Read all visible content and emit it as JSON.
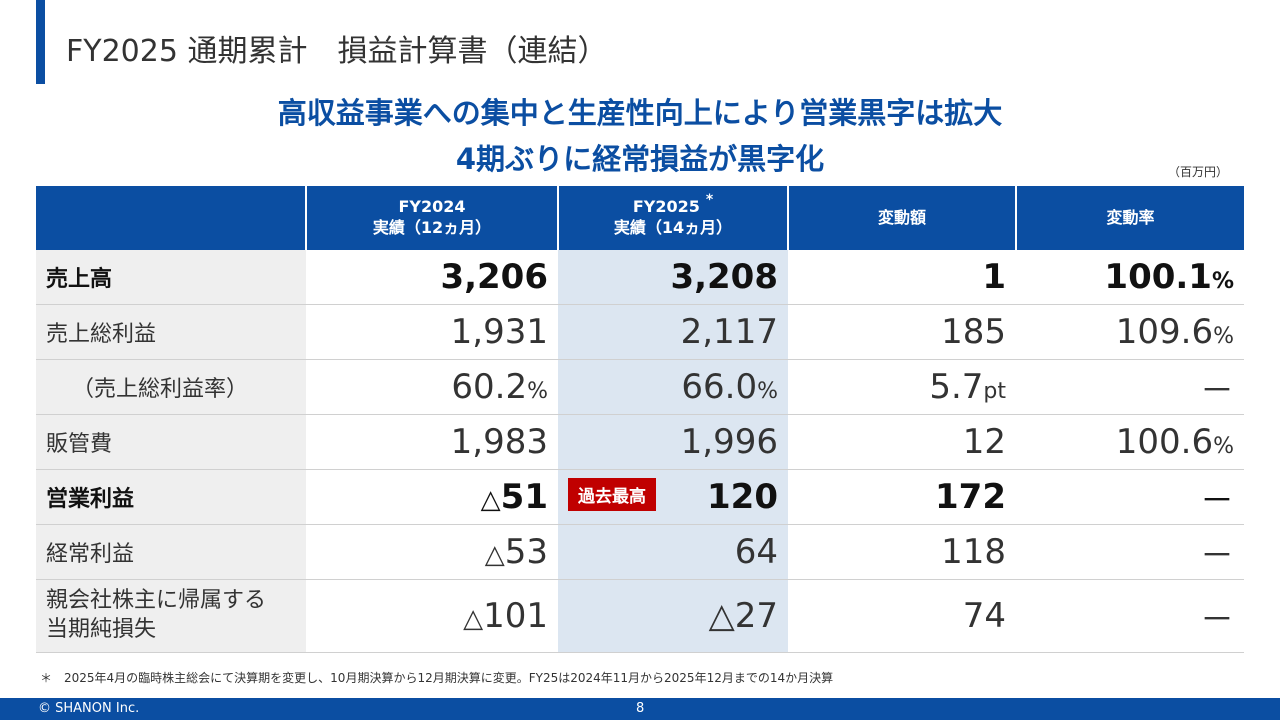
{
  "title": "FY2025 通期累計　損益計算書（連結）",
  "headline": {
    "line1": "高収益事業への集中と生産性向上により営業黒字は拡大",
    "line2": "4期ぶりに経常損益が黒字化"
  },
  "unit_note": "（百万円）",
  "table": {
    "headers": [
      {
        "line1": "",
        "line2": ""
      },
      {
        "line1": "FY2024",
        "line2": "実績（12ヵ月）"
      },
      {
        "line1": "FY2025",
        "line2": "実績（14ヵ月）",
        "mark": "*"
      },
      {
        "line1": "変動額",
        "line2": ""
      },
      {
        "line1": "変動率",
        "line2": ""
      }
    ],
    "rows": {
      "sales": {
        "label": "売上高",
        "fy2024": "3,206",
        "fy2025": "3,208",
        "change": "1",
        "rate": "100.1",
        "rate_unit": "%"
      },
      "gross": {
        "label": "売上総利益",
        "fy2024": "1,931",
        "fy2025": "2,117",
        "change": "185",
        "rate": "109.6",
        "rate_unit": "%"
      },
      "margin": {
        "label": "（売上総利益率）",
        "fy2024": "60.2",
        "fy2024_unit": "%",
        "fy2025": "66.0",
        "fy2025_unit": "%",
        "change": "5.7",
        "change_unit": "pt",
        "rate": "－"
      },
      "sga": {
        "label": "販管費",
        "fy2024": "1,983",
        "fy2025": "1,996",
        "change": "12",
        "rate": "100.6",
        "rate_unit": "%"
      },
      "op": {
        "label": "営業利益",
        "fy2024_mark": "△",
        "fy2024": "51",
        "badge": "過去最高",
        "fy2025": "120",
        "change": "172",
        "rate": "－"
      },
      "ordinary": {
        "label": "経常利益",
        "fy2024_mark": "△",
        "fy2024": "53",
        "fy2025": "64",
        "change": "118",
        "rate": "－"
      },
      "net": {
        "label_line1": "親会社株主に帰属する",
        "label_line2": "当期純損失",
        "fy2024_mark": "△",
        "fy2024": "101",
        "fy2025_mark": "△",
        "fy2025": "27",
        "change": "74",
        "rate": "－"
      }
    }
  },
  "footnote": "＊　2025年4月の臨時株主総会にて決算期を変更し、10月期決算から12月期決算に変更。FY25は2024年11月から2025年12月までの14か月決算",
  "footer": {
    "copyright": "© SHANON Inc.",
    "page": "8"
  },
  "colors": {
    "brand_blue": "#0b4ea2",
    "highlight_col": "#dce6f1",
    "badge_red": "#c00000",
    "label_bg": "#efefef"
  }
}
